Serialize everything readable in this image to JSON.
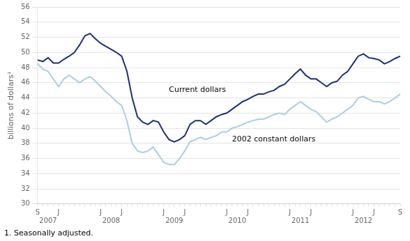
{
  "chart_data": {
    "type": "line",
    "ylabel": "billions of dollars¹",
    "footnote": "1. Seasonally adjusted.",
    "categories": [
      "S",
      null,
      null,
      null,
      "J",
      null,
      null,
      null,
      null,
      null,
      null,
      null,
      "J",
      null,
      null,
      null,
      "J",
      null,
      null,
      null,
      null,
      null,
      null,
      null,
      "J",
      null,
      null,
      null,
      "J",
      null,
      null,
      null,
      null,
      null,
      null,
      null,
      "J",
      null,
      null,
      null,
      "J",
      null,
      null,
      null,
      null,
      null,
      null,
      null,
      "J",
      null,
      null,
      null,
      "J",
      null,
      null,
      null,
      null,
      null,
      null,
      null,
      "J",
      null,
      null,
      null,
      "J",
      null,
      null,
      null,
      null,
      "S"
    ],
    "series": [
      {
        "name": "Current dollars",
        "color": "#1a2f7a",
        "values": [
          49.0,
          48.8,
          49.3,
          48.6,
          48.6,
          49.1,
          49.5,
          50.0,
          51.0,
          52.2,
          52.5,
          51.8,
          51.2,
          50.8,
          50.4,
          50.0,
          49.5,
          47.5,
          44.0,
          41.5,
          40.8,
          40.5,
          41.0,
          40.8,
          39.5,
          38.5,
          38.2,
          38.5,
          39.0,
          40.5,
          41.0,
          41.0,
          40.5,
          41.0,
          41.5,
          41.8,
          42.0,
          42.5,
          43.0,
          43.5,
          43.8,
          44.2,
          44.5,
          44.5,
          44.8,
          45.0,
          45.5,
          45.8,
          46.5,
          47.2,
          47.8,
          47.0,
          46.5,
          46.5,
          46.0,
          45.5,
          46.0,
          46.2,
          47.0,
          47.5,
          48.5,
          49.5,
          49.8,
          49.3,
          49.2,
          49.0,
          48.5,
          48.8,
          49.2,
          49.5
        ]
      },
      {
        "name": "2002 constant dollars",
        "color": "#a8cfe0",
        "values": [
          48.5,
          47.8,
          47.5,
          46.5,
          45.5,
          46.5,
          47.0,
          46.5,
          46.0,
          46.5,
          46.8,
          46.2,
          45.5,
          44.8,
          44.2,
          43.5,
          43.0,
          41.0,
          38.0,
          37.0,
          36.8,
          37.0,
          37.5,
          36.5,
          35.5,
          35.2,
          35.2,
          36.0,
          37.0,
          38.2,
          38.5,
          38.8,
          38.5,
          38.8,
          39.0,
          39.5,
          39.5,
          40.0,
          40.2,
          40.5,
          40.8,
          41.0,
          41.2,
          41.2,
          41.5,
          41.8,
          42.0,
          41.8,
          42.5,
          43.0,
          43.5,
          43.0,
          42.5,
          42.2,
          41.5,
          40.8,
          41.2,
          41.5,
          42.0,
          42.5,
          43.0,
          44.0,
          44.2,
          43.8,
          43.5,
          43.5,
          43.2,
          43.5,
          44.0,
          44.5
        ]
      }
    ],
    "annotations": [
      {
        "text": "Current dollars",
        "x": 25,
        "y": 44.5
      },
      {
        "text": "2002 constant dollars",
        "x": 37,
        "y": 38.0
      },
      {
        "text": "2007",
        "x": 2
      },
      {
        "text": "2008",
        "x": 14
      },
      {
        "text": "2009",
        "x": 26
      },
      {
        "text": "2010",
        "x": 38
      },
      {
        "text": "2011",
        "x": 50
      },
      {
        "text": "2012",
        "x": 62
      }
    ],
    "ylim": [
      30,
      56
    ],
    "yticks": [
      30,
      32,
      34,
      36,
      38,
      40,
      42,
      44,
      46,
      48,
      50,
      52,
      54,
      56
    ],
    "grid": true
  }
}
